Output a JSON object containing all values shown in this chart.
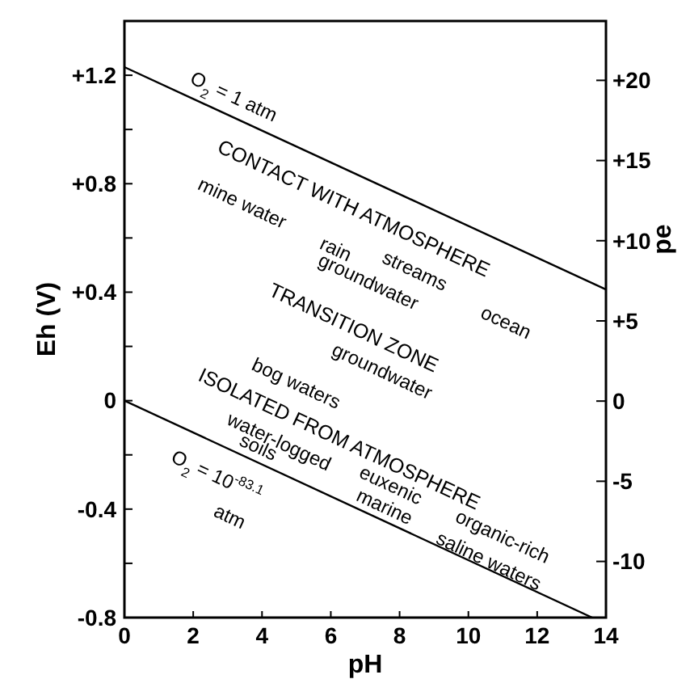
{
  "chart_data": {
    "type": "line",
    "xlabel": "pH",
    "ylabel": "Eh (V)",
    "y2label": "pe",
    "xlim": [
      0,
      14
    ],
    "xticks": [
      0,
      2,
      4,
      6,
      8,
      10,
      12,
      14
    ],
    "ylim": [
      -0.8,
      1.4
    ],
    "yticks": [
      {
        "value": -0.8,
        "label": "-0.8"
      },
      {
        "value": -0.6,
        "label": null
      },
      {
        "value": -0.4,
        "label": "-0.4"
      },
      {
        "value": -0.2,
        "label": null
      },
      0,
      {
        "value": 0.2,
        "label": null
      },
      {
        "value": 0.4,
        "label": "+0.4"
      },
      {
        "value": 0.6,
        "label": null
      },
      {
        "value": 0.8,
        "label": "+0.8"
      },
      {
        "value": 1.0,
        "label": null
      },
      {
        "value": 1.2,
        "label": "+1.2"
      }
    ],
    "y2lim": [
      -13.5,
      23.7
    ],
    "y2ticks": [
      {
        "value": -10,
        "label": "-10"
      },
      {
        "value": -5,
        "label": "-5"
      },
      0,
      {
        "value": 5,
        "label": "+5"
      },
      {
        "value": 10,
        "label": "+10"
      },
      {
        "value": 15,
        "label": "+15"
      },
      {
        "value": 20,
        "label": "+20"
      }
    ],
    "grid": false,
    "line_style": "solid",
    "series": [
      {
        "name": "O$_{2}$ = 1 atm",
        "color": "#000000",
        "x": [
          0,
          14
        ],
        "values": [
          1.23,
          0.41
        ]
      },
      {
        "name": "O$_{2}$ = 10$^{-83.1}$ atm",
        "color": "#000000",
        "x": [
          0,
          13.6
        ],
        "values": [
          0,
          -0.8
        ]
      }
    ],
    "annotations": [
      "CONTACT WITH ATMOSPHERE",
      "mine water",
      "rain",
      "streams",
      "ocean",
      "groundwater",
      "TRANSITION ZONE",
      "groundwater",
      "bog waters",
      "ISOLATED FROM ATMOSPHERE",
      "water-logged",
      "soils",
      "euxenic",
      "marine",
      "organic-rich",
      "saline waters"
    ]
  }
}
